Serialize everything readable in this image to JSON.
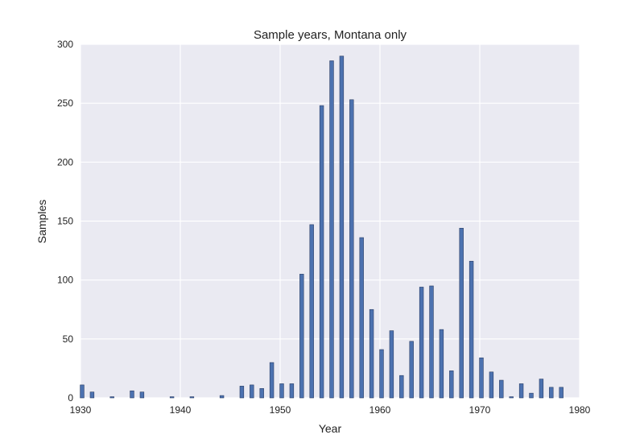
{
  "chart_data": {
    "type": "bar",
    "title": "Sample years, Montana only",
    "xlabel": "Year",
    "ylabel": "Samples",
    "xlim": [
      1930,
      1980
    ],
    "ylim": [
      0,
      300
    ],
    "xticks": [
      "1930",
      "1940",
      "1950",
      "1960",
      "1970",
      "1980"
    ],
    "yticks": [
      "0",
      "50",
      "100",
      "150",
      "200",
      "250",
      "300"
    ],
    "grid": true,
    "x": [
      1930,
      1931,
      1933,
      1935,
      1936,
      1939,
      1941,
      1944,
      1946,
      1947,
      1948,
      1949,
      1950,
      1951,
      1952,
      1953,
      1954,
      1955,
      1956,
      1957,
      1958,
      1959,
      1960,
      1961,
      1962,
      1963,
      1964,
      1965,
      1966,
      1967,
      1968,
      1969,
      1970,
      1971,
      1972,
      1973,
      1974,
      1975,
      1976,
      1977,
      1978
    ],
    "values": [
      11,
      5,
      1,
      6,
      5,
      1,
      1,
      2,
      10,
      11,
      8,
      30,
      12,
      12,
      105,
      147,
      248,
      286,
      290,
      253,
      136,
      75,
      41,
      57,
      19,
      48,
      94,
      95,
      58,
      23,
      144,
      116,
      34,
      22,
      15,
      1,
      12,
      4,
      16,
      9,
      9
    ],
    "colors": {
      "bar": "#4c72b0",
      "bar_edge": "#2b3f66",
      "plot_bg": "#eaeaf2",
      "grid": "#ffffff"
    }
  }
}
